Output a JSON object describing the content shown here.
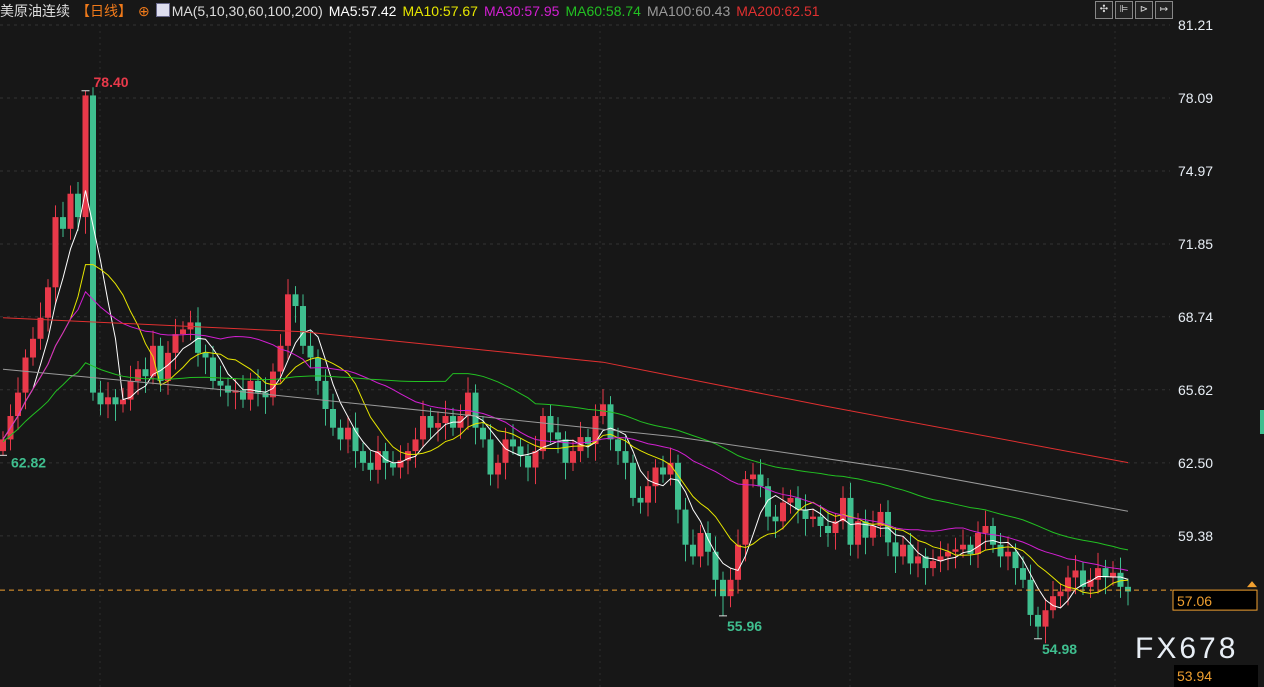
{
  "header": {
    "symbol": "美原油连续",
    "period": "【日线】",
    "ma_params": "MA(5,10,30,60,100,200)",
    "ma5": "MA5:57.42",
    "ma10": "MA10:57.67",
    "ma30": "MA30:57.95",
    "ma60": "MA60:58.74",
    "ma100": "MA100:60.43",
    "ma200": "MA200:62.51"
  },
  "toolbar": [
    "crosshair-icon",
    "zoom-in-icon",
    "play-icon",
    "exit-icon"
  ],
  "watermark": "FX678",
  "colors": {
    "up": "#e8394a",
    "down": "#3fbf8f",
    "ma5": "#ffffff",
    "ma10": "#e6e600",
    "ma30": "#d21fd2",
    "ma60": "#22c022",
    "ma100": "#9a9a9a",
    "ma200": "#e03030",
    "current": "#f0a030"
  },
  "chart_data": {
    "type": "candlestick",
    "y_ticks": [
      "81.21",
      "78.09",
      "74.97",
      "71.85",
      "68.74",
      "65.62",
      "62.50",
      "59.38"
    ],
    "ylim": [
      53.94,
      81.21
    ],
    "grid": true,
    "current_price": "57.06",
    "bottom_price": "53.94",
    "annotations": [
      {
        "index": 11,
        "value": "78.40"
      },
      {
        "index": 0,
        "value": "62.82"
      },
      {
        "index": 96,
        "value": "55.96"
      },
      {
        "index": 138,
        "value": "54.98"
      }
    ],
    "close": [
      63.5,
      64.5,
      65.5,
      67,
      67.8,
      68.7,
      70,
      73,
      72.5,
      74,
      73,
      78.2,
      65.5,
      65,
      65.3,
      65,
      65.2,
      66,
      66.5,
      66.2,
      67.5,
      66,
      67.2,
      68,
      68.2,
      68.5,
      67.2,
      67,
      66,
      65.8,
      65.5,
      65.6,
      65.2,
      66,
      65.5,
      65.3,
      66.4,
      67.5,
      69.7,
      69.2,
      67.5,
      67,
      66,
      64.8,
      64,
      63.5,
      64,
      63,
      62.5,
      62.2,
      63,
      62.5,
      62.3,
      62.6,
      63,
      63.5,
      64.5,
      64,
      64.2,
      64.5,
      64,
      64.5,
      65.5,
      64,
      63.5,
      62,
      62.5,
      63.5,
      63.2,
      62.8,
      62.3,
      63,
      64.5,
      63.8,
      63.5,
      62.5,
      63,
      63.6,
      63.3,
      64.5,
      65,
      63.5,
      63,
      62.5,
      61,
      60.8,
      61.5,
      62.3,
      62,
      62.5,
      60.5,
      59,
      58.5,
      59.5,
      58.7,
      57.5,
      56.8,
      57.5,
      59,
      61.8,
      62,
      61.5,
      60.2,
      60,
      60.8,
      61,
      60.5,
      60.1,
      60.2,
      59.8,
      59.5,
      60,
      61,
      59,
      60,
      59.3,
      59.8,
      60.4,
      59.1,
      58.5,
      59,
      58.2,
      58.5,
      58,
      58.3,
      58.5,
      58.7,
      58.8,
      59,
      58.6,
      59.5,
      59.8,
      59,
      58.5,
      58.7,
      58,
      57.5,
      56,
      55.5,
      56.2,
      56.8,
      57,
      57.6,
      57.9,
      57.2,
      57.5,
      58,
      57.6,
      57.8,
      57.2,
      57
    ],
    "ma100_points": [
      [
        0,
        66.5
      ],
      [
        30,
        65.6
      ],
      [
        60,
        64.6
      ],
      [
        90,
        63.6
      ],
      [
        120,
        62.2
      ],
      [
        150,
        60.43
      ]
    ],
    "ma200_points": [
      [
        0,
        68.7
      ],
      [
        40,
        68.1
      ],
      [
        80,
        66.8
      ],
      [
        110,
        64.9
      ],
      [
        150,
        62.51
      ]
    ]
  }
}
